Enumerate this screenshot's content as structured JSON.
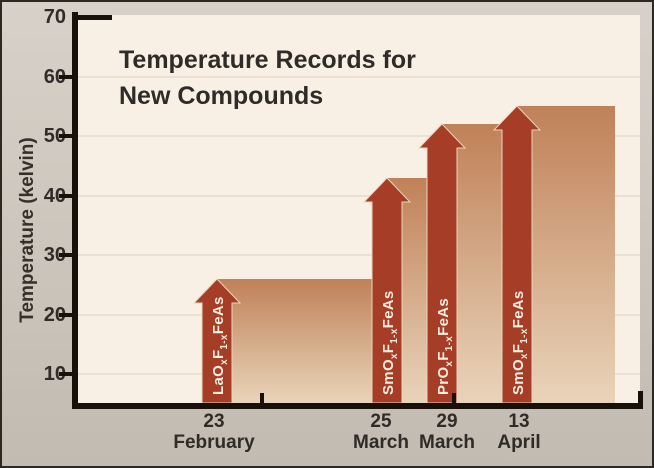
{
  "frame": {
    "bg_outer": "#cfc8be",
    "bg_plot": "#f8f0e5",
    "accent_red": "#a63d26",
    "fill_top": "#c08158",
    "fill_bottom": "#e9d4ba",
    "axis_color": "#17110a",
    "grid_color": "#eadfd0",
    "text_color": "#2f2b27",
    "arrow_text_color": "#f7edde"
  },
  "title": {
    "line1": "Temperature Records for",
    "line2": "New Compounds"
  },
  "chart_data": {
    "type": "area",
    "title": "Temperature Records for New Compounds",
    "xlabel": "",
    "ylabel": "Temperature (kelvin)",
    "ylim": [
      5,
      70
    ],
    "yticks": [
      70,
      60,
      50,
      40,
      30,
      20,
      10
    ],
    "grid": "horizontal",
    "legend": "none",
    "style": "step area with record arrows, dark-to-light vertical gradient fill",
    "records": [
      {
        "day": "23",
        "month": "February",
        "temperature_K": 26,
        "compound": "LaOxF1-xFeAs",
        "compound_parts": [
          {
            "t": "LaO"
          },
          {
            "t": "x",
            "sub": true
          },
          {
            "t": "F"
          },
          {
            "t": "1-x",
            "sub": true
          },
          {
            "t": "FeAs"
          }
        ]
      },
      {
        "day": "25",
        "month": "March",
        "temperature_K": 43,
        "compound": "SmOxF1-xFeAs",
        "compound_parts": [
          {
            "t": "SmO"
          },
          {
            "t": "x",
            "sub": true
          },
          {
            "t": "F"
          },
          {
            "t": "1-x",
            "sub": true
          },
          {
            "t": "FeAs"
          }
        ]
      },
      {
        "day": "29",
        "month": "March",
        "temperature_K": 52,
        "compound": "PrOxF1-xFeAs",
        "compound_parts": [
          {
            "t": "PrO"
          },
          {
            "t": "x",
            "sub": true
          },
          {
            "t": "F"
          },
          {
            "t": "1-x",
            "sub": true
          },
          {
            "t": "FeAs"
          }
        ]
      },
      {
        "day": "13",
        "month": "April",
        "temperature_K": 55,
        "compound": "SmOxF1-xFeAs",
        "compound_parts": [
          {
            "t": "SmO"
          },
          {
            "t": "x",
            "sub": true
          },
          {
            "t": "F"
          },
          {
            "t": "1-x",
            "sub": true
          },
          {
            "t": "FeAs"
          }
        ]
      }
    ]
  }
}
